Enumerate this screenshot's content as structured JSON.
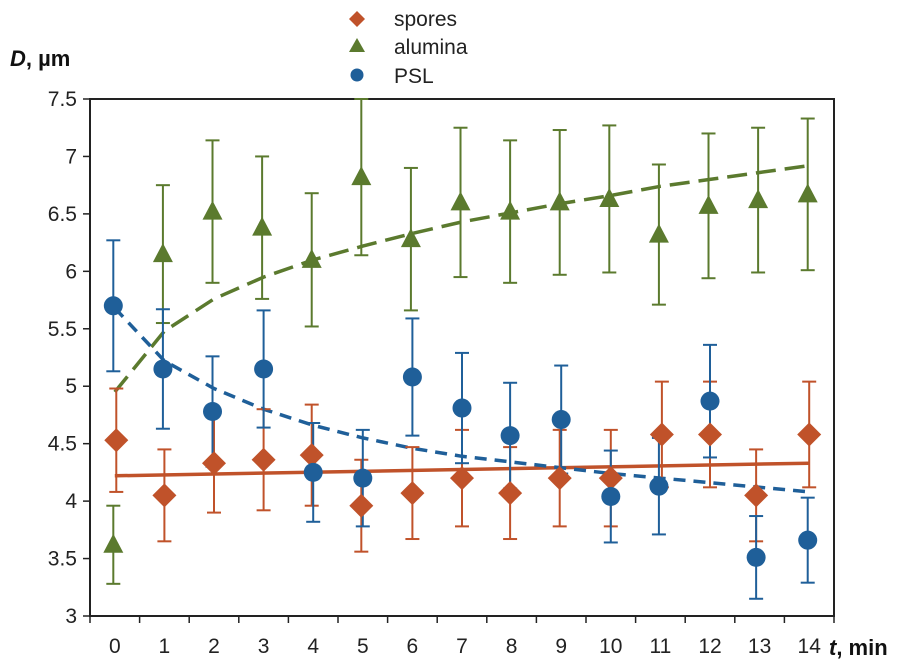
{
  "chart_data": {
    "type": "scatter",
    "xlabel_symbol": "t",
    "xlabel_unit": ", min",
    "ylabel_symbol": "D",
    "ylabel_unit": ", µm",
    "xlim": [
      -0.5,
      14.5
    ],
    "ylim": [
      3,
      7.5
    ],
    "xticks": [
      0,
      1,
      2,
      3,
      4,
      5,
      6,
      7,
      8,
      9,
      10,
      11,
      12,
      13,
      14
    ],
    "yticks": [
      3,
      3.5,
      4,
      4.5,
      5,
      5.5,
      6,
      6.5,
      7,
      7.5
    ],
    "ytick_labels": [
      "3",
      "3.5",
      "4",
      "4.5",
      "5",
      "5.5",
      "6",
      "6.5",
      "7",
      "7.5"
    ],
    "grid": false,
    "legend_position": "top-center",
    "series": [
      {
        "name": "spores",
        "marker": "diamond",
        "color": "#C0522A",
        "x": [
          0.03,
          1.0,
          2.0,
          3.0,
          3.97,
          4.97,
          6.0,
          7.0,
          7.97,
          8.97,
          10.0,
          11.03,
          12.0,
          12.93,
          14.0
        ],
        "y": [
          4.53,
          4.05,
          4.33,
          4.36,
          4.4,
          3.96,
          4.07,
          4.2,
          4.07,
          4.2,
          4.2,
          4.58,
          4.58,
          4.05,
          4.58
        ],
        "err": [
          0.45,
          0.4,
          0.43,
          0.44,
          0.44,
          0.4,
          0.4,
          0.42,
          0.4,
          0.42,
          0.42,
          0.46,
          0.46,
          0.4,
          0.46
        ],
        "trend": {
          "style": "solid",
          "x": [
            0,
            14
          ],
          "y": [
            4.22,
            4.33
          ]
        }
      },
      {
        "name": "alumina",
        "marker": "triangle",
        "color": "#5B7A2E",
        "x": [
          -0.03,
          0.97,
          1.97,
          2.97,
          3.97,
          4.97,
          5.97,
          6.97,
          7.97,
          8.97,
          9.97,
          10.97,
          11.97,
          12.97,
          13.97
        ],
        "y": [
          3.62,
          6.15,
          6.52,
          6.38,
          6.1,
          6.82,
          6.28,
          6.6,
          6.52,
          6.6,
          6.63,
          6.32,
          6.57,
          6.62,
          6.67
        ],
        "err": [
          0.34,
          0.6,
          0.62,
          0.62,
          0.58,
          0.68,
          0.62,
          0.65,
          0.62,
          0.63,
          0.64,
          0.61,
          0.63,
          0.63,
          0.66
        ],
        "trend": {
          "style": "dashed",
          "x": [
            0,
            1,
            2,
            3,
            4,
            5,
            6,
            7,
            8,
            9,
            10,
            11,
            12,
            13,
            14
          ],
          "y": [
            4.95,
            5.48,
            5.76,
            5.95,
            6.1,
            6.22,
            6.33,
            6.43,
            6.51,
            6.59,
            6.66,
            6.74,
            6.8,
            6.86,
            6.92
          ]
        }
      },
      {
        "name": "PSL",
        "marker": "circle",
        "color": "#1F5F99",
        "x": [
          -0.03,
          0.97,
          1.97,
          3.0,
          4.0,
          5.0,
          6.0,
          7.0,
          7.97,
          9.0,
          10.0,
          10.97,
          12.0,
          12.93,
          13.97
        ],
        "y": [
          5.7,
          5.15,
          4.78,
          5.15,
          4.25,
          4.2,
          5.08,
          4.81,
          4.57,
          4.71,
          4.04,
          4.13,
          4.87,
          3.51,
          3.66
        ],
        "err": [
          0.57,
          0.52,
          0.48,
          0.51,
          0.43,
          0.42,
          0.51,
          0.48,
          0.46,
          0.47,
          0.4,
          0.42,
          0.49,
          0.36,
          0.37
        ],
        "trend": {
          "style": "dashed",
          "x": [
            0,
            1,
            2,
            3,
            4,
            5,
            6,
            7,
            8,
            9,
            10,
            11,
            12,
            13,
            14
          ],
          "y": [
            5.68,
            5.22,
            4.98,
            4.8,
            4.66,
            4.55,
            4.46,
            4.39,
            4.34,
            4.29,
            4.24,
            4.2,
            4.16,
            4.12,
            4.08
          ]
        }
      }
    ]
  }
}
